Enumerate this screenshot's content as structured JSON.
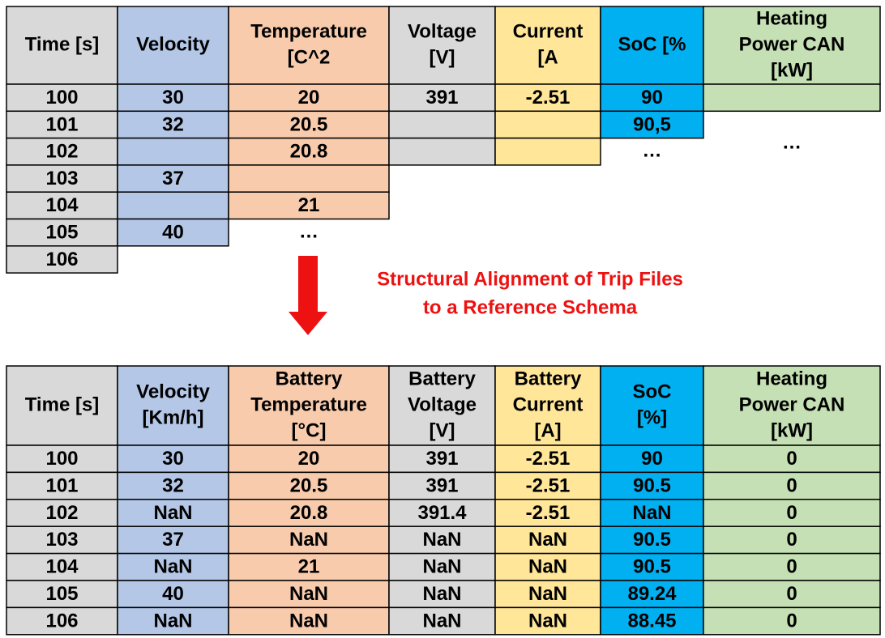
{
  "top_table": {
    "columns": [
      {
        "header": [
          "Time [s]"
        ],
        "cells": [
          "100",
          "101",
          "102",
          "103",
          "104",
          "105",
          "106"
        ]
      },
      {
        "header": [
          "Velocity"
        ],
        "cells": [
          "30",
          "32",
          null,
          "37",
          null,
          "40"
        ]
      },
      {
        "header": [
          "Temperature",
          "[C^2"
        ],
        "cells": [
          "20",
          "20.5",
          "20.8",
          null,
          "21"
        ],
        "ellipsis": "…"
      },
      {
        "header": [
          "Voltage",
          "[V]"
        ],
        "cells": [
          "391",
          null,
          null
        ]
      },
      {
        "header": [
          "Current",
          "[A"
        ],
        "cells": [
          "-2.51",
          null,
          null
        ]
      },
      {
        "header": [
          "SoC [%"
        ],
        "cells": [
          "90",
          "90,5"
        ],
        "ellipsis": "…"
      },
      {
        "header": [
          "Heating",
          "Power CAN",
          "[kW]"
        ],
        "cells": [
          null
        ],
        "ellipsis": "…"
      }
    ]
  },
  "caption": [
    "Structural Alignment of Trip Files",
    "to a Reference Schema"
  ],
  "bottom_table": {
    "columns": [
      {
        "header": [
          "Time [s]"
        ],
        "cells": [
          "100",
          "101",
          "102",
          "103",
          "104",
          "105",
          "106"
        ]
      },
      {
        "header": [
          "Velocity",
          "[Km/h]"
        ],
        "cells": [
          "30",
          "32",
          "NaN",
          "37",
          "NaN",
          "40",
          "NaN"
        ]
      },
      {
        "header": [
          "Battery",
          "Temperature",
          "[°C]"
        ],
        "cells": [
          "20",
          "20.5",
          "20.8",
          "NaN",
          "21",
          "NaN",
          "NaN"
        ]
      },
      {
        "header": [
          "Battery",
          "Voltage",
          "[V]"
        ],
        "cells": [
          "391",
          "391",
          "391.4",
          "NaN",
          "NaN",
          "NaN",
          "NaN"
        ]
      },
      {
        "header": [
          "Battery",
          "Current",
          "[A]"
        ],
        "cells": [
          "-2.51",
          "-2.51",
          "-2.51",
          "NaN",
          "NaN",
          "NaN",
          "NaN"
        ]
      },
      {
        "header": [
          "SoC",
          "[%]"
        ],
        "cells": [
          "90",
          "90.5",
          "NaN",
          "90.5",
          "90.5",
          "89.24",
          "88.45"
        ]
      },
      {
        "header": [
          "Heating",
          "Power CAN",
          "[kW]"
        ],
        "cells": [
          "0",
          "0",
          "0",
          "0",
          "0",
          "0",
          "0"
        ]
      }
    ]
  }
}
